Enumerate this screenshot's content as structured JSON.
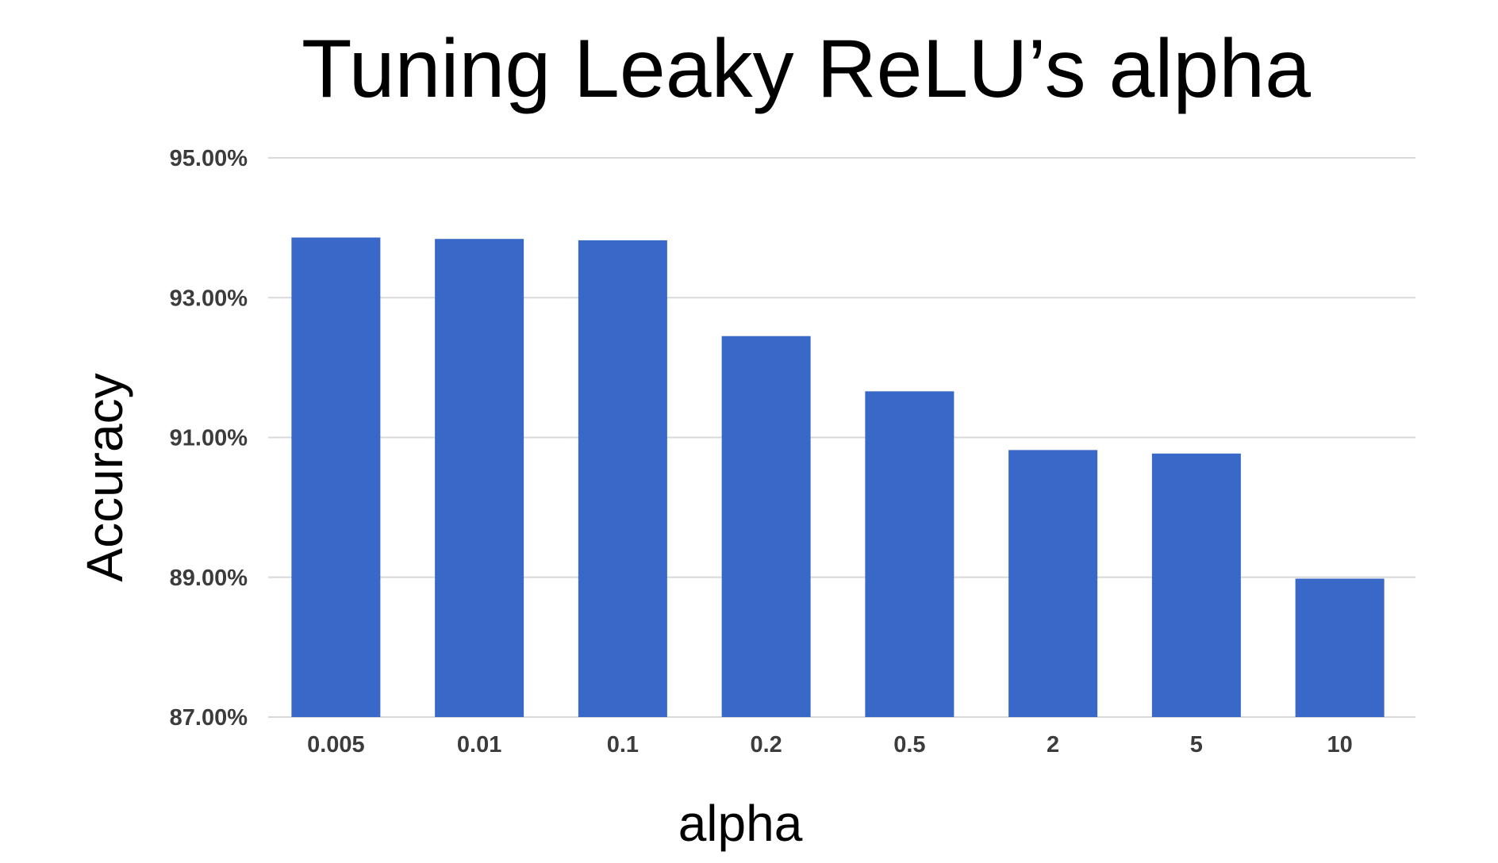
{
  "chart_data": {
    "type": "bar",
    "title": "Tuning Leaky ReLU’s alpha",
    "xlabel": "alpha",
    "ylabel": "Accuracy",
    "categories": [
      "0.005",
      "0.01",
      "0.1",
      "0.2",
      "0.5",
      "2",
      "5",
      "10"
    ],
    "values": [
      93.86,
      93.84,
      93.82,
      92.45,
      91.66,
      90.82,
      90.77,
      88.98
    ],
    "ylim": [
      87,
      95
    ],
    "yticks": [
      87,
      89,
      91,
      93,
      95
    ],
    "ytick_labels": [
      "87.00%",
      "89.00%",
      "91.00%",
      "93.00%",
      "95.00%"
    ],
    "grid": true,
    "legend": "none",
    "bar_color": "#3869c8",
    "grid_color": "#d9d9d9"
  }
}
